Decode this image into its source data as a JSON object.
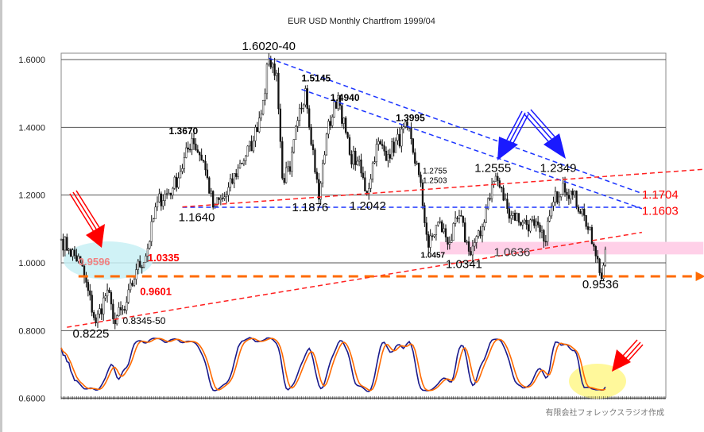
{
  "chart_data": {
    "type": "candlestick",
    "title": "EUR USD Monthly Chartfrom  1999/04",
    "x_unit": "months since 1999/04",
    "ylim": [
      0.6,
      1.6
    ],
    "xlim": [
      0,
      314
    ],
    "yticks": [
      "1.6000",
      "1.4000",
      "1.2000",
      "1.0000",
      "0.8000",
      "0.6000"
    ],
    "ytick_values": [
      1.6,
      1.4,
      1.2,
      1.0,
      0.8,
      0.6
    ],
    "grid": true,
    "price_anchors": [
      [
        0,
        1.07
      ],
      [
        4,
        1.04
      ],
      [
        10,
        1.0
      ],
      [
        18,
        0.8225
      ],
      [
        24,
        0.92
      ],
      [
        27,
        0.8345
      ],
      [
        33,
        0.86
      ],
      [
        39,
        0.98
      ],
      [
        44,
        1.02
      ],
      [
        50,
        1.18
      ],
      [
        58,
        1.22
      ],
      [
        62,
        1.27
      ],
      [
        68,
        1.367
      ],
      [
        74,
        1.3
      ],
      [
        79,
        1.164
      ],
      [
        86,
        1.2
      ],
      [
        92,
        1.28
      ],
      [
        100,
        1.36
      ],
      [
        105,
        1.48
      ],
      [
        108,
        1.602
      ],
      [
        112,
        1.56
      ],
      [
        115,
        1.25
      ],
      [
        119,
        1.27
      ],
      [
        123,
        1.42
      ],
      [
        127,
        1.5145
      ],
      [
        134,
        1.1876
      ],
      [
        138,
        1.38
      ],
      [
        144,
        1.494
      ],
      [
        150,
        1.32
      ],
      [
        154,
        1.3
      ],
      [
        159,
        1.2042
      ],
      [
        164,
        1.35
      ],
      [
        170,
        1.32
      ],
      [
        180,
        1.3995
      ],
      [
        186,
        1.26
      ],
      [
        191,
        1.0457
      ],
      [
        196,
        1.12
      ],
      [
        202,
        1.06
      ],
      [
        207,
        1.14
      ],
      [
        212,
        1.0341
      ],
      [
        218,
        1.08
      ],
      [
        222,
        1.19
      ],
      [
        226,
        1.2555
      ],
      [
        232,
        1.16
      ],
      [
        240,
        1.12
      ],
      [
        246,
        1.11
      ],
      [
        251,
        1.0636
      ],
      [
        256,
        1.18
      ],
      [
        261,
        1.2349
      ],
      [
        266,
        1.2
      ],
      [
        272,
        1.14
      ],
      [
        278,
        1.02
      ],
      [
        281,
        0.9536
      ],
      [
        283,
        1.04
      ]
    ],
    "stochastic": {
      "k_period": 14,
      "smooth": 3,
      "series": [
        {
          "name": "%K",
          "color": "#1a1a8c"
        },
        {
          "name": "%D",
          "color": "#ff6a00"
        }
      ],
      "panel_range": [
        0.6,
        0.8
      ]
    },
    "trendlines": [
      {
        "name": "blue-resistance-1",
        "color": "#1a33ff",
        "from": [
          108,
          1.604
        ],
        "to": [
          302,
          1.205
        ]
      },
      {
        "name": "blue-resistance-2",
        "color": "#1a33ff",
        "from": [
          125,
          1.512
        ],
        "to": [
          302,
          1.16
        ]
      },
      {
        "name": "blue-horizontal",
        "color": "#1a33ff",
        "from": [
          63,
          1.164
        ],
        "to": [
          302,
          1.164
        ]
      },
      {
        "name": "red-upper",
        "color": "#ff2020",
        "from": [
          63,
          1.165
        ],
        "to": [
          334,
          1.276
        ]
      },
      {
        "name": "red-lower",
        "color": "#ff2020",
        "from": [
          3,
          0.81
        ],
        "to": [
          302,
          1.09
        ]
      },
      {
        "name": "orange-support",
        "color": "#ff6a00",
        "from": [
          9,
          0.9601
        ],
        "to": [
          330,
          0.9601
        ]
      }
    ],
    "zones": [
      {
        "name": "pink-band",
        "color": "#ffd0e8",
        "x": [
          197,
          334
        ],
        "y": [
          1.025,
          1.062
        ]
      }
    ],
    "annotations": [
      {
        "text": "1.6020-40",
        "m": 94,
        "p": 1.628,
        "color": "#000",
        "style": "big"
      },
      {
        "text": "1.5145",
        "m": 125,
        "p": 1.535,
        "color": "#000",
        "style": "bold"
      },
      {
        "text": "1.4940",
        "m": 140,
        "p": 1.478,
        "color": "#000",
        "style": "bold"
      },
      {
        "text": "1.3995",
        "m": 174,
        "p": 1.418,
        "color": "#000",
        "style": "bold"
      },
      {
        "text": "1.3670",
        "m": 56,
        "p": 1.38,
        "color": "#000",
        "style": "bold"
      },
      {
        "text": "1.2755",
        "m": 188,
        "p": 1.264,
        "color": "#000",
        "style": "small"
      },
      {
        "text": "1.2503",
        "m": 188,
        "p": 1.235,
        "color": "#000",
        "style": "small"
      },
      {
        "text": "1.2555",
        "m": 215,
        "p": 1.268,
        "color": "#000",
        "style": "big"
      },
      {
        "text": "1.2349",
        "m": 249,
        "p": 1.268,
        "color": "#000",
        "style": "big"
      },
      {
        "text": "1.1640",
        "m": 61,
        "p": 1.123,
        "color": "#000",
        "style": "big"
      },
      {
        "text": "1.1876",
        "m": 120,
        "p": 1.152,
        "color": "#000",
        "style": "big"
      },
      {
        "text": "1.2042",
        "m": 150,
        "p": 1.157,
        "color": "#000",
        "style": "big"
      },
      {
        "text": "1.1704",
        "m": 302,
        "p": 1.19,
        "color": "#ff0000",
        "style": "big"
      },
      {
        "text": "1.1603",
        "m": 302,
        "p": 1.142,
        "color": "#ff0000",
        "style": "big"
      },
      {
        "text": "1.0457",
        "m": 187,
        "p": 1.015,
        "color": "#000",
        "style": "boldsmall"
      },
      {
        "text": "1.0341",
        "m": 200,
        "p": 0.985,
        "color": "#000",
        "style": "big"
      },
      {
        "text": "1.0636",
        "m": 225,
        "p": 1.02,
        "color": "#333",
        "style": "big"
      },
      {
        "text": "0.9536",
        "m": 271,
        "p": 0.925,
        "color": "#000",
        "style": "big"
      },
      {
        "text": "0.9596",
        "m": 9,
        "p": 0.993,
        "color": "#f08080",
        "style": "red"
      },
      {
        "text": "1.0335",
        "m": 45,
        "p": 1.005,
        "color": "#ff0000",
        "style": "red"
      },
      {
        "text": "0.9601",
        "m": 41,
        "p": 0.905,
        "color": "#ff0000",
        "style": "red"
      },
      {
        "text": "0.8345-50",
        "m": 32,
        "p": 0.82,
        "color": "#000",
        "style": "normal"
      },
      {
        "text": "0.8225",
        "m": 6,
        "p": 0.78,
        "color": "#000",
        "style": "big"
      }
    ]
  },
  "credit": "有限会社フォレックスラジオ作成"
}
